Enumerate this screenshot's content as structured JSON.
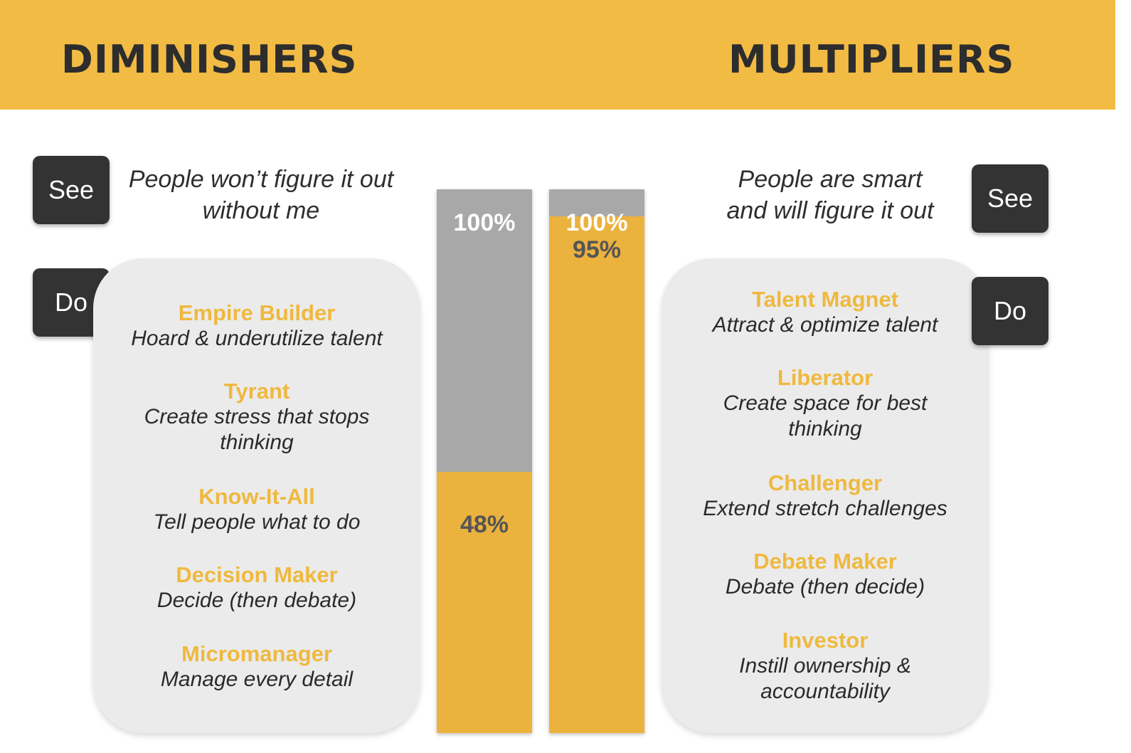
{
  "header": {
    "left_title": "DIMINISHERS",
    "right_title": "MULTIPLIERS"
  },
  "colors": {
    "header_bg": "#f2bb44",
    "accent": "#efb93f",
    "bar_fill": "#ebb23e",
    "bar_track": "#a8a8a8",
    "tag_bg": "#333333",
    "panel_bg": "#ebebeb"
  },
  "tags": {
    "see": "See",
    "do": "Do"
  },
  "diminishers": {
    "belief_line1": "People won’t figure it out",
    "belief_line2": "without me",
    "items": [
      {
        "title": "Empire Builder",
        "desc": [
          "Hoard & underutilize talent"
        ]
      },
      {
        "title": "Tyrant",
        "desc": [
          "Create stress that stops",
          "thinking"
        ]
      },
      {
        "title": "Know-It-All",
        "desc": [
          "Tell people what to do"
        ]
      },
      {
        "title": "Decision Maker",
        "desc": [
          "Decide (then debate)"
        ]
      },
      {
        "title": "Micromanager",
        "desc": [
          "Manage every detail"
        ]
      }
    ]
  },
  "multipliers": {
    "belief_line1": "People are smart",
    "belief_line2": "and will figure it out",
    "items": [
      {
        "title": "Talent Magnet",
        "desc": [
          "Attract & optimize talent"
        ]
      },
      {
        "title": "Liberator",
        "desc": [
          "Create space for best",
          "thinking"
        ]
      },
      {
        "title": "Challenger",
        "desc": [
          "Extend stretch challenges"
        ]
      },
      {
        "title": "Debate Maker",
        "desc": [
          "Debate (then decide)"
        ]
      },
      {
        "title": "Investor",
        "desc": [
          "Instill ownership &",
          "accountability"
        ]
      }
    ]
  },
  "chart_data": {
    "type": "bar",
    "categories": [
      "DIMINISHERS",
      "MULTIPLIERS"
    ],
    "series": [
      {
        "values": [
          100,
          100
        ]
      },
      {
        "values": [
          48,
          95
        ]
      }
    ],
    "labels": {
      "diminishers_total": "100%",
      "diminishers_value": "48%",
      "multipliers_total": "100%",
      "multipliers_value": "95%"
    },
    "ylim": [
      0,
      100
    ]
  }
}
